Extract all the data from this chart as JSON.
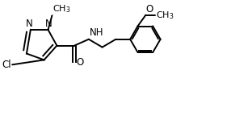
{
  "bg_color": "#ffffff",
  "line_color": "#000000",
  "line_width": 1.4,
  "font_size": 8.5,
  "figsize": [
    3.12,
    1.54
  ],
  "dpi": 100,
  "xlim": [
    0.0,
    3.12
  ],
  "ylim": [
    0.0,
    1.54
  ]
}
